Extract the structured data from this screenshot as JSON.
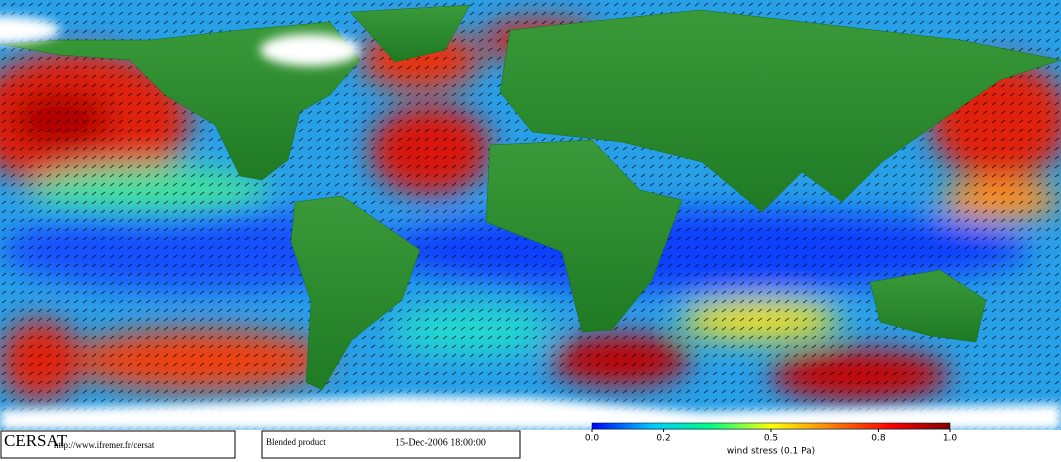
{
  "footer": {
    "logo": "CERSAT",
    "url": "http://www.ifremer.fr/cersat",
    "product": "Blended product",
    "date": "15-Dec-2006 18:00:00"
  },
  "colorbar": {
    "label": "wind stress (0.1 Pa)",
    "lim": [
      0,
      1
    ],
    "ticks": [
      {
        "value": 0,
        "label": "0.0"
      },
      0.2,
      0.5,
      0.8,
      {
        "value": 1,
        "label": "1.0"
      }
    ],
    "colors": [
      "#0000ff",
      "#00c8ff",
      "#00ff80",
      "#ffff00",
      "#ff8000",
      "#ff0000",
      "#800000"
    ]
  }
}
